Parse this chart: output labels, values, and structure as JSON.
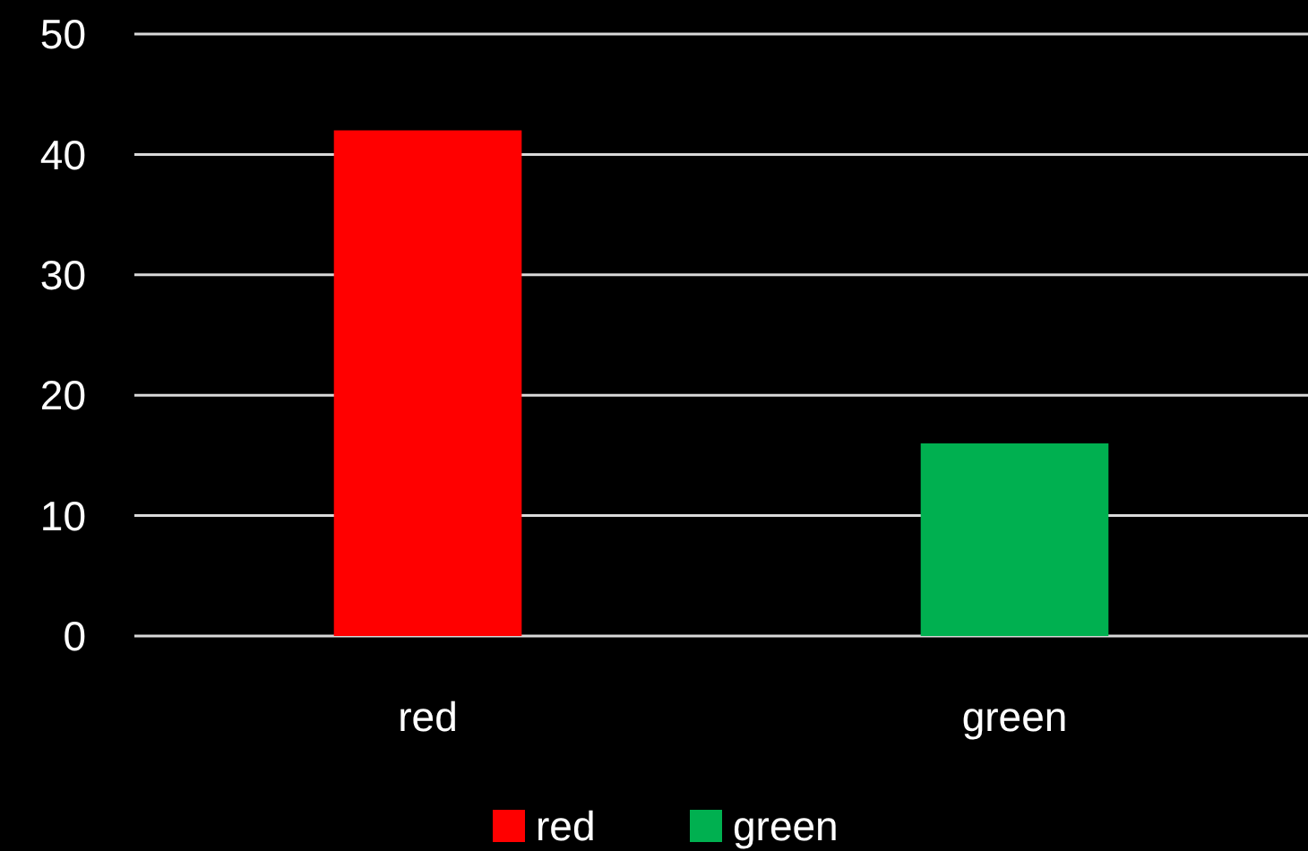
{
  "chart_data": {
    "type": "bar",
    "categories": [
      "red",
      "green"
    ],
    "stacked": true,
    "series": [
      {
        "name": "red",
        "color": "#ff0000",
        "values": [
          42,
          null
        ]
      },
      {
        "name": "green",
        "color": "#00b050",
        "values": [
          null,
          16
        ]
      }
    ],
    "ylim": [
      0,
      50
    ],
    "yticks": [
      0,
      10,
      20,
      30,
      40,
      50
    ],
    "grid": "y",
    "legend": "bottom"
  }
}
